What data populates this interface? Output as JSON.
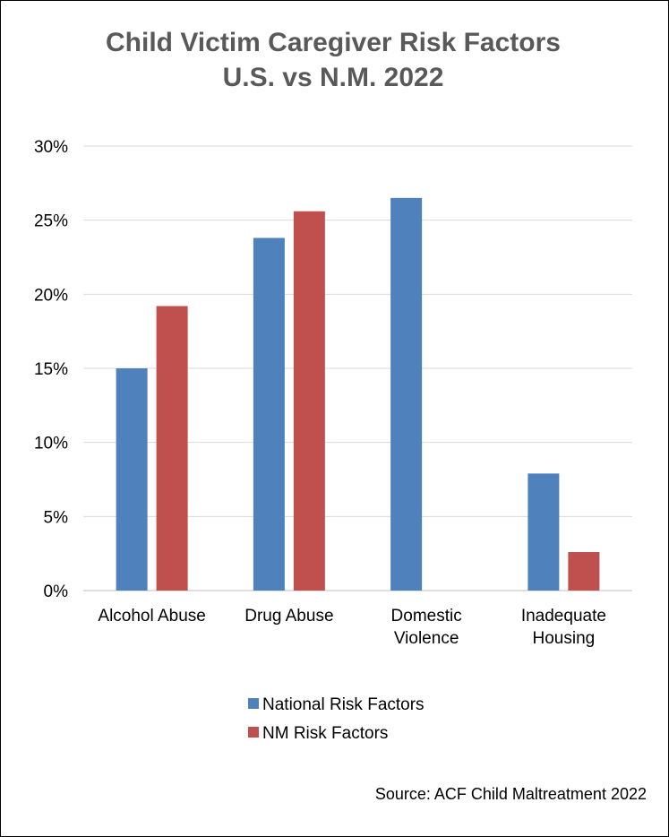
{
  "chart_data": {
    "type": "bar",
    "title_lines": [
      "Child Victim Caregiver Risk Factors",
      "U.S. vs N.M. 2022"
    ],
    "categories": [
      [
        "Alcohol Abuse"
      ],
      [
        "Drug Abuse"
      ],
      [
        "Domestic",
        "Violence"
      ],
      [
        "Inadequate",
        "Housing"
      ]
    ],
    "series": [
      {
        "name": "National Risk Factors",
        "color": "#4F81BD",
        "values": [
          15.0,
          23.8,
          26.5,
          7.9
        ]
      },
      {
        "name": "NM Risk Factors",
        "color": "#C0504D",
        "values": [
          19.2,
          25.6,
          null,
          2.6
        ]
      }
    ],
    "ylim": [
      0,
      30
    ],
    "yticks": [
      0,
      5,
      10,
      15,
      20,
      25,
      30
    ],
    "ytick_labels": [
      "0%",
      "5%",
      "10%",
      "15%",
      "20%",
      "25%",
      "30%"
    ],
    "grid": true,
    "legend_position": "bottom",
    "source": "Source: ACF Child Maltreatment 2022"
  }
}
